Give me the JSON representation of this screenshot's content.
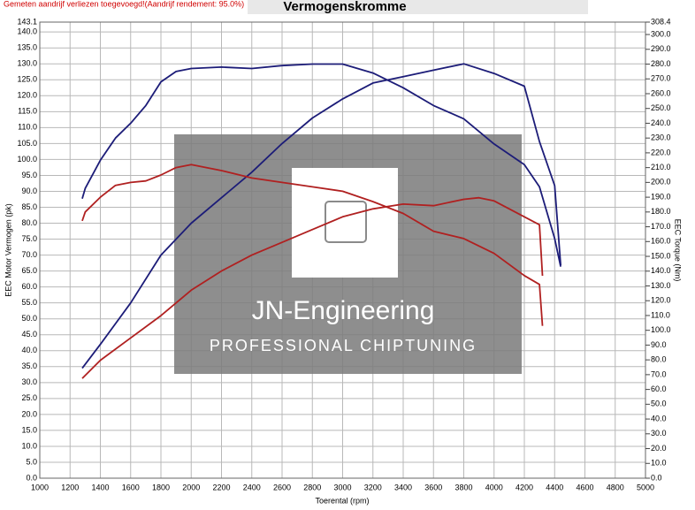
{
  "chart_data": {
    "type": "line",
    "title": "Vermogenskromme",
    "note": "Gemeten aandrijf verliezen toegevoegd!(Aandrijf rendement: 95.0%)",
    "x_label": "Toerental (rpm)",
    "y_label": "EEC Motor Vermogen (pk)",
    "y2_label": "EEC Torque (Nm)",
    "watermark": {
      "title": "JN-Engineering",
      "subtitle": "PROFESSIONAL CHIPTUNING"
    },
    "grid": true,
    "xlim": [
      1000,
      5000
    ],
    "xticks": [
      1000,
      1200,
      1400,
      1600,
      1800,
      2000,
      2200,
      2400,
      2600,
      2800,
      3000,
      3200,
      3400,
      3600,
      3800,
      4000,
      4200,
      4400,
      4600,
      4800,
      5000
    ],
    "ylim": [
      0,
      143.1
    ],
    "yticks": [
      {
        "value": 0,
        "label": "0.0"
      },
      {
        "value": 5,
        "label": "5.0"
      },
      {
        "value": 10,
        "label": "10.0"
      },
      {
        "value": 15,
        "label": "15.0"
      },
      {
        "value": 20,
        "label": "20.0"
      },
      {
        "value": 25,
        "label": "25.0"
      },
      {
        "value": 30,
        "label": "30.0"
      },
      {
        "value": 35,
        "label": "35.0"
      },
      {
        "value": 40,
        "label": "40.0"
      },
      {
        "value": 45,
        "label": "45.0"
      },
      {
        "value": 50,
        "label": "50.0"
      },
      {
        "value": 55,
        "label": "55.0"
      },
      {
        "value": 60,
        "label": "60.0"
      },
      {
        "value": 65,
        "label": "65.0"
      },
      {
        "value": 70,
        "label": "70.0"
      },
      {
        "value": 75,
        "label": "75.0"
      },
      {
        "value": 80,
        "label": "80.0"
      },
      {
        "value": 85,
        "label": "85.0"
      },
      {
        "value": 90,
        "label": "90.0"
      },
      {
        "value": 95,
        "label": "95.0"
      },
      {
        "value": 100,
        "label": "100.0"
      },
      {
        "value": 105,
        "label": "105.0"
      },
      {
        "value": 110,
        "label": "110.0"
      },
      {
        "value": 115,
        "label": "115.0"
      },
      {
        "value": 120,
        "label": "120.0"
      },
      {
        "value": 125,
        "label": "125.0"
      },
      {
        "value": 130,
        "label": "130.0"
      },
      {
        "value": 135,
        "label": "135.0"
      },
      {
        "value": 140,
        "label": "140.0"
      },
      {
        "value": 143.1,
        "label": "143.1"
      }
    ],
    "y2lim": [
      0,
      308.4
    ],
    "y2ticks": [
      {
        "value": 0,
        "label": "0.0"
      },
      {
        "value": 10,
        "label": "10.0"
      },
      {
        "value": 20,
        "label": "20.0"
      },
      {
        "value": 30,
        "label": "30.0"
      },
      {
        "value": 40,
        "label": "40.0"
      },
      {
        "value": 50,
        "label": "50.0"
      },
      {
        "value": 60,
        "label": "60.0"
      },
      {
        "value": 70,
        "label": "70.0"
      },
      {
        "value": 80,
        "label": "80.0"
      },
      {
        "value": 90,
        "label": "90.0"
      },
      {
        "value": 100,
        "label": "100.0"
      },
      {
        "value": 110,
        "label": "110.0"
      },
      {
        "value": 120,
        "label": "120.0"
      },
      {
        "value": 130,
        "label": "130.0"
      },
      {
        "value": 140,
        "label": "140.0"
      },
      {
        "value": 150,
        "label": "150.0"
      },
      {
        "value": 160,
        "label": "160.0"
      },
      {
        "value": 170,
        "label": "170.0"
      },
      {
        "value": 180,
        "label": "180.0"
      },
      {
        "value": 190,
        "label": "190.0"
      },
      {
        "value": 200,
        "label": "200.0"
      },
      {
        "value": 210,
        "label": "210.0"
      },
      {
        "value": 220,
        "label": "220.0"
      },
      {
        "value": 230,
        "label": "230.0"
      },
      {
        "value": 240,
        "label": "240.0"
      },
      {
        "value": 250,
        "label": "250.0"
      },
      {
        "value": 260,
        "label": "260.0"
      },
      {
        "value": 270,
        "label": "270.0"
      },
      {
        "value": 280,
        "label": "280.0"
      },
      {
        "value": 290,
        "label": "290.0"
      },
      {
        "value": 300,
        "label": "300.0"
      },
      {
        "value": 308.4,
        "label": "308.4"
      }
    ],
    "series": [
      {
        "color": "#1c1c78",
        "axis": "y",
        "x": [
          1280,
          1400,
          1600,
          1800,
          2000,
          2200,
          2400,
          2600,
          2800,
          3000,
          3200,
          3400,
          3600,
          3800,
          4000,
          4200,
          4300,
          4400,
          4440
        ],
        "values": [
          34.5,
          42,
          55,
          70,
          80,
          88,
          96,
          105,
          113,
          119,
          124,
          126,
          128,
          130,
          127,
          123,
          105.6,
          91.8,
          66.8
        ]
      },
      {
        "color": "#1c1c78",
        "axis": "y2",
        "x": [
          1280,
          1300,
          1400,
          1500,
          1600,
          1700,
          1800,
          1900,
          2000,
          2200,
          2400,
          2600,
          2800,
          3000,
          3200,
          3400,
          3600,
          3800,
          4000,
          4200,
          4300,
          4400,
          4440
        ],
        "values": [
          189,
          196,
          215,
          230,
          240,
          252,
          268,
          275,
          277,
          278,
          277,
          279,
          280,
          280,
          274,
          264,
          252,
          243,
          226,
          212,
          197,
          162,
          143
        ]
      },
      {
        "color": "#b02020",
        "axis": "y",
        "x": [
          1280,
          1400,
          1600,
          1800,
          2000,
          2200,
          2400,
          2600,
          2800,
          3000,
          3200,
          3400,
          3600,
          3800,
          3900,
          4000,
          4200,
          4300,
          4320
        ],
        "values": [
          31.3,
          37,
          44,
          51,
          59,
          65,
          70,
          74,
          78,
          82,
          84.5,
          86,
          85.5,
          87.5,
          88,
          87,
          82,
          79.5,
          63.5
        ]
      },
      {
        "color": "#b02020",
        "axis": "y2",
        "x": [
          1280,
          1300,
          1400,
          1500,
          1600,
          1700,
          1800,
          1900,
          2000,
          2200,
          2400,
          2600,
          2800,
          3000,
          3200,
          3400,
          3600,
          3800,
          4000,
          4200,
          4300,
          4320
        ],
        "values": [
          174,
          180,
          190,
          198,
          200,
          201,
          205,
          210,
          212,
          208,
          203,
          200,
          197,
          194,
          187,
          179,
          167,
          162,
          152,
          137,
          131,
          103
        ]
      }
    ]
  }
}
